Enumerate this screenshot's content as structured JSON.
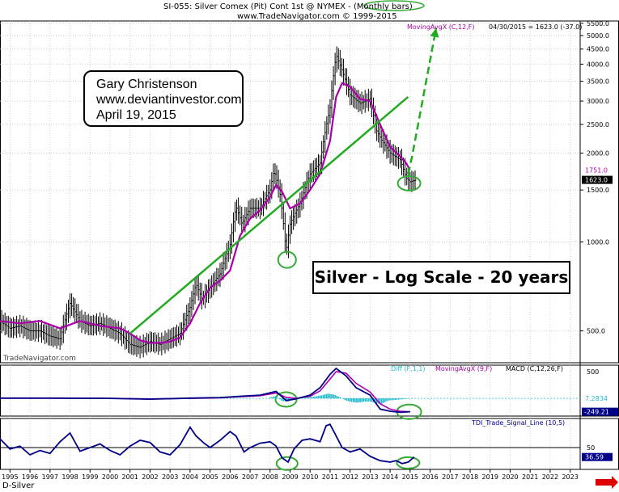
{
  "header": {
    "line1_prefix": "SI-055:  Silver Comex (Pit) Cont 1st @ NYMEX -",
    "line1_highlight": "(Monthly bars)",
    "line2": "www.TradeNavigator.com © 1999-2015"
  },
  "annotations": {
    "author_name": "Gary Christenson",
    "author_site": "www.deviantinvestor.com",
    "author_date": "April 19, 2015",
    "headline": "Silver - Log Scale - 20 years",
    "watermark": "TradeNavigator.com",
    "symbol": "D-Silver"
  },
  "colors": {
    "price_bars": "#000000",
    "moving_avg": "#aa00aa",
    "trend_line": "#22aa22",
    "macd_hist": "#22bbcc",
    "tdi_line": "#000088",
    "highlight_circle": "#33aa33",
    "red_arrow": "#dd0000"
  },
  "chart_data": [
    {
      "type": "bar",
      "title": "Silver Comex (Pit) Cont 1st @ NYMEX - Monthly bars",
      "legend_entries": [
        "MovingAvgX (C,12,F)"
      ],
      "readout": "04/30/2015 = 1623.0 (-37.0)",
      "y_scale": "log",
      "ylim": [
        390,
        5600
      ],
      "y_ticks": [
        "5500.0",
        "5000.0",
        "4500.0",
        "4000.0",
        "3500.0",
        "3000.0",
        "2500.0",
        "2000.0",
        "1500.0",
        "1000.0",
        "500.0"
      ],
      "y_tick_values": [
        5500,
        5000,
        4500,
        4000,
        3500,
        3000,
        2500,
        2000,
        1500,
        1000,
        500
      ],
      "last_labels": {
        "moving_avg": "1751.0",
        "close": "1623.0"
      },
      "x_ticks": [
        "1995",
        "1996",
        "1997",
        "1998",
        "1999",
        "2000",
        "2001",
        "2002",
        "2003",
        "2004",
        "2005",
        "2006",
        "2007",
        "2008",
        "2009",
        "2010",
        "2011",
        "2012",
        "2013",
        "2014",
        "2015",
        "2016",
        "2017",
        "2018",
        "2019",
        "2020",
        "2021",
        "2022",
        "2023"
      ],
      "price_series": {
        "name": "Silver monthly close",
        "x": [
          1994.5,
          1995.0,
          1995.5,
          1996.0,
          1996.5,
          1997.0,
          1997.5,
          1998.0,
          1998.5,
          1999.0,
          1999.5,
          2000.0,
          2000.5,
          2001.0,
          2001.5,
          2002.0,
          2002.5,
          2003.0,
          2003.5,
          2004.0,
          2004.3,
          2004.6,
          2005.0,
          2005.5,
          2006.0,
          2006.3,
          2006.6,
          2007.0,
          2007.5,
          2008.0,
          2008.2,
          2008.5,
          2008.8,
          2009.0,
          2009.5,
          2010.0,
          2010.5,
          2011.0,
          2011.3,
          2011.6,
          2012.0,
          2012.5,
          2013.0,
          2013.3,
          2013.6,
          2014.0,
          2014.5,
          2014.8,
          2015.0,
          2015.3
        ],
        "values": [
          540,
          510,
          520,
          500,
          500,
          480,
          470,
          620,
          540,
          520,
          530,
          510,
          490,
          450,
          440,
          460,
          450,
          470,
          490,
          600,
          720,
          640,
          700,
          780,
          980,
          1320,
          1150,
          1300,
          1300,
          1500,
          1750,
          1450,
          920,
          1150,
          1350,
          1700,
          1850,
          2850,
          4300,
          3800,
          3150,
          2950,
          3050,
          2400,
          2200,
          2000,
          1900,
          1650,
          1600,
          1623
        ]
      },
      "moving_avg_series": {
        "name": "MovingAvgX (C,12,F)",
        "x": [
          1994.5,
          1995.5,
          1996.5,
          1997.5,
          1998.5,
          1999.5,
          2000.5,
          2001.0,
          2001.5,
          2002.0,
          2002.5,
          2003.0,
          2003.5,
          2004.0,
          2004.5,
          2005.0,
          2005.5,
          2006.0,
          2006.5,
          2007.0,
          2007.5,
          2008.0,
          2008.3,
          2008.6,
          2009.0,
          2009.5,
          2010.0,
          2010.5,
          2011.0,
          2011.3,
          2011.6,
          2012.0,
          2012.5,
          2013.0,
          2013.5,
          2014.0,
          2014.5,
          2014.8,
          2015.0
        ],
        "values": [
          540,
          530,
          540,
          510,
          540,
          520,
          510,
          490,
          465,
          455,
          455,
          460,
          475,
          530,
          620,
          700,
          740,
          800,
          1050,
          1200,
          1280,
          1420,
          1560,
          1480,
          1300,
          1350,
          1500,
          1700,
          2200,
          3100,
          3450,
          3350,
          3050,
          3000,
          2500,
          2100,
          1950,
          1850,
          1751
        ]
      },
      "trend_line": {
        "x": [
          2001.0,
          2014.9
        ],
        "y": [
          490,
          3100
        ]
      },
      "projection": {
        "x": [
          2014.9,
          2015.1,
          2016.3
        ],
        "y": [
          1700,
          1950,
          5300
        ]
      }
    },
    {
      "type": "line",
      "legend_entries": [
        "Diff (F,1,1)",
        "MovingAvgX (9,F)",
        "MACD (C,12,26,F)"
      ],
      "y_ticks": [
        "500"
      ],
      "last_labels": {
        "diff": "7.2834",
        "macd": "-249.21"
      },
      "macd_series": {
        "name": "MACD (C,12,26,F)",
        "x": [
          1994.5,
          1997.0,
          2000.0,
          2002.0,
          2004.0,
          2005.5,
          2006.5,
          2007.5,
          2008.3,
          2008.8,
          2009.3,
          2010.0,
          2010.5,
          2011.0,
          2011.3,
          2011.8,
          2012.3,
          2013.0,
          2013.5,
          2014.0,
          2014.5,
          2015.0
        ],
        "values": [
          5,
          5,
          0,
          -15,
          5,
          15,
          40,
          60,
          130,
          -40,
          -10,
          60,
          200,
          450,
          560,
          420,
          200,
          60,
          -200,
          -240,
          -260,
          -249
        ]
      },
      "signal_series": {
        "name": "MovingAvgX (9,F)",
        "x": [
          1994.5,
          1997.0,
          2000.0,
          2002.0,
          2004.0,
          2005.5,
          2006.5,
          2007.5,
          2008.3,
          2008.8,
          2009.3,
          2010.0,
          2010.5,
          2011.0,
          2011.3,
          2011.8,
          2012.3,
          2013.0,
          2013.5,
          2014.0,
          2014.5,
          2015.0
        ],
        "values": [
          5,
          5,
          0,
          -10,
          0,
          10,
          30,
          50,
          100,
          20,
          0,
          40,
          140,
          360,
          500,
          470,
          280,
          120,
          -100,
          -200,
          -240,
          -250
        ]
      },
      "diff_histogram": {
        "name": "Diff (F,1,1)",
        "x": [
          2008.0,
          2008.3,
          2008.6,
          2008.9,
          2009.2,
          2010.3,
          2010.6,
          2010.9,
          2011.2,
          2011.5,
          2011.8,
          2012.1,
          2012.4,
          2012.7,
          2013.0,
          2013.3,
          2013.6,
          2013.9,
          2014.2,
          2014.5,
          2014.8,
          2015.1
        ],
        "values": [
          20,
          40,
          -50,
          -60,
          -20,
          40,
          60,
          90,
          70,
          20,
          -40,
          -70,
          -80,
          -60,
          -60,
          -90,
          -100,
          -40,
          -30,
          -20,
          -10,
          7
        ]
      }
    },
    {
      "type": "line",
      "legend_entries": [
        "TDI_Trade_Signal_Line (10,5)"
      ],
      "y_ticks": [
        "50"
      ],
      "last_labels": {
        "tdi": "36.59"
      },
      "reference_line": 50,
      "series": [
        {
          "name": "TDI_Trade_Signal_Line (10,5)",
          "x": [
            1994.5,
            1995.0,
            1995.5,
            1996.0,
            1996.5,
            1997.0,
            1997.5,
            1998.0,
            1998.5,
            1999.0,
            1999.5,
            2000.0,
            2000.5,
            2001.0,
            2001.5,
            2002.0,
            2002.5,
            2003.0,
            2003.5,
            2004.0,
            2004.3,
            2004.7,
            2005.0,
            2005.5,
            2006.0,
            2006.3,
            2006.7,
            2007.0,
            2007.5,
            2008.0,
            2008.3,
            2008.6,
            2008.9,
            2009.2,
            2009.6,
            2010.0,
            2010.5,
            2010.8,
            2011.0,
            2011.3,
            2011.6,
            2012.0,
            2012.5,
            2013.0,
            2013.5,
            2014.0,
            2014.3,
            2014.6,
            2014.9,
            2015.2
          ],
          "values": [
            62,
            48,
            52,
            40,
            46,
            42,
            58,
            70,
            45,
            50,
            55,
            46,
            40,
            52,
            60,
            57,
            44,
            40,
            54,
            78,
            66,
            56,
            50,
            60,
            72,
            66,
            44,
            50,
            56,
            58,
            52,
            36,
            30,
            48,
            60,
            62,
            58,
            80,
            82,
            66,
            50,
            44,
            48,
            38,
            32,
            30,
            32,
            28,
            30,
            37
          ]
        }
      ]
    }
  ]
}
